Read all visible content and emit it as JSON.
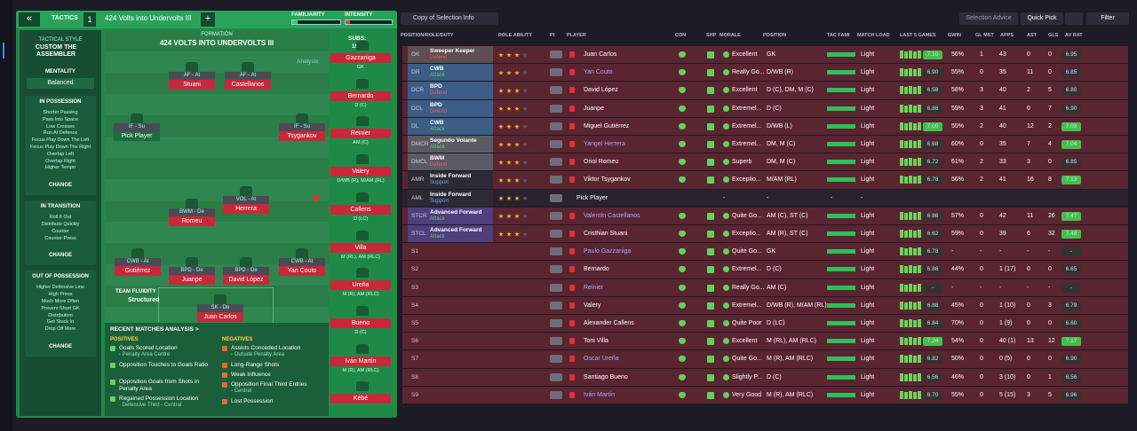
{
  "tactics_panel": {
    "header": {
      "back": "«",
      "label": "TACTICS",
      "slot": "1",
      "tactic_name": "424 Volts into Undervolts III",
      "add": "+",
      "familiarity": "FAMILIARITY",
      "intensity": "INTENSITY"
    },
    "style": {
      "label": "TACTICAL STYLE",
      "name": "CUSTOM THE ASSEMBLER",
      "mentality_label": "MENTALITY",
      "mentality": "Balanced"
    },
    "instruction_groups": [
      {
        "title": "IN POSSESSION",
        "items": [
          "Shorter Passing",
          "Pass Into Space",
          "Low Crosses",
          "Run At Defence",
          "Focus Play Down The Left",
          "Focus Play Down The Right",
          "Overlap Left",
          "Overlap Right",
          "Higher Tempo"
        ],
        "button": "CHANGE"
      },
      {
        "title": "IN TRANSITION",
        "items": [
          "Roll It Out",
          "Distribute Quickly",
          "Counter",
          "Counter-Press"
        ],
        "button": "CHANGE"
      },
      {
        "title": "OUT OF POSSESSION",
        "items": [
          "Higher Defensive Line",
          "High Press",
          "Much More Often",
          "Prevent Short GK",
          "Distribution",
          "Get Stuck In",
          "Drop Off More"
        ],
        "button": "CHANGE"
      }
    ],
    "formation": {
      "label": "FORMATION",
      "name": "424 VOLTS INTO UNDERVOLTS III",
      "analysis": "Analysis",
      "subs_label": "SUBS:",
      "subs_count": "15/15"
    },
    "pitch_players": [
      {
        "role": "AF - At",
        "name": "Stuani"
      },
      {
        "role": "AF - At",
        "name": "Castellanos"
      },
      {
        "role": "IF - Su",
        "name": "Pick Player"
      },
      {
        "role": "IF - Su",
        "name": "Tsygankov"
      },
      {
        "role": "BWM - De",
        "name": "Romeu"
      },
      {
        "role": "VOL - At",
        "name": "Herrera"
      },
      {
        "role": "CWB - At",
        "name": "Gutiérrez"
      },
      {
        "role": "BPD - De",
        "name": "Juanpe"
      },
      {
        "role": "BPD - De",
        "name": "David López"
      },
      {
        "role": "CWB - At",
        "name": "Yan Couto"
      },
      {
        "role": "SK - De",
        "name": "Juan Carlos"
      }
    ],
    "fluidity": {
      "label": "TEAM FLUIDITY",
      "value": "Structured"
    },
    "subs": [
      {
        "name": "Gazzaniga",
        "position": "GK"
      },
      {
        "name": "Bernardo",
        "position": "D (C)"
      },
      {
        "name": "Reinier",
        "position": "AM (C)"
      },
      {
        "name": "Valery",
        "position": "D/WB (R), M/AM (RL)"
      },
      {
        "name": "Callens",
        "position": "D (LC)"
      },
      {
        "name": "Villa",
        "position": "M (RL), AM (RLC)"
      },
      {
        "name": "Ureña",
        "position": "M (R), AM (RLC)"
      },
      {
        "name": "Bueno",
        "position": "D (C)"
      },
      {
        "name": "Iván Martín",
        "position": "M (R), AM (RLC)"
      },
      {
        "name": "Kébé",
        "position": ""
      }
    ],
    "analysis": {
      "title": "RECENT MATCHES ANALYSIS >",
      "positives_label": "POSITIVES",
      "positives": [
        {
          "text": "Goals Scored Location",
          "detail": "- Penalty Area Centre"
        },
        {
          "text": "Opposition Touches to Goals Ratio"
        },
        {
          "text": "Opposition Goals from Shots in Penalty Area"
        },
        {
          "text": "Regained Possession Location",
          "detail": "- Defensive Third - Central"
        }
      ],
      "negatives_label": "NEGATIVES",
      "negatives": [
        {
          "text": "Assists Conceded Location",
          "detail": "- Outside Penalty Area"
        },
        {
          "text": "Long-Range Shots"
        },
        {
          "text": "Weak Influence"
        },
        {
          "text": "Opposition Final Third Entries",
          "detail": "- Central"
        },
        {
          "text": "Lost Possession"
        }
      ]
    }
  },
  "selection_panel": {
    "toolbar": {
      "view": "Copy of Selection Info",
      "advice": "Selection Advice",
      "quick_pick": "Quick Pick",
      "filter": "Filter"
    },
    "columns": {
      "pos": "POSITION/ROLE/DUTY",
      "ability": "ROLE ABILITY",
      "pi": "PI",
      "player": "PLAYER",
      "con": "CON",
      "shp": "SHP",
      "morale": "MORALE",
      "position": "POSITION",
      "tac": "TAC FAMI",
      "load": "MATCH LOAD",
      "last5": "LAST 5 GAMES",
      "gwin": "GWIN",
      "glmst": "GL MST",
      "apps": "APPS",
      "ast": "AST",
      "gls": "GLS",
      "av_rat": "AV RAT"
    },
    "rows": [
      {
        "pos": "GK",
        "role": "Sweeper Keeper",
        "duty": "Defend",
        "duty_color": "#e26464",
        "role_color": "#5e4f52",
        "player": "Juan Carlos",
        "morale": "Excellent",
        "position": "GK",
        "match_load": "Light",
        "last5": "7.10",
        "gwin": "56%",
        "glmst": "1",
        "apps": "43",
        "ast": "0",
        "gls": "0",
        "av_rat": "6.95"
      },
      {
        "pos": "DR",
        "role": "CWB",
        "duty": "Attack",
        "duty_color": "#5ad174",
        "role_color": "#3b5d86",
        "player": "Yan Couto",
        "name_color": "#a7a9ff",
        "morale": "Really Go...",
        "position": "D/WB (R)",
        "match_load": "Light",
        "last5": "6.90",
        "gwin": "55%",
        "glmst": "0",
        "apps": "35",
        "ast": "11",
        "gls": "0",
        "av_rat": "6.85"
      },
      {
        "pos": "DCR",
        "role": "BPD",
        "duty": "Defend",
        "duty_color": "#e26464",
        "role_color": "#3b5d86",
        "player": "David López",
        "morale": "Excellent",
        "position": "D (C), DM, M (C)",
        "match_load": "Light",
        "last5": "6.58",
        "gwin": "58%",
        "glmst": "3",
        "apps": "40",
        "ast": "2",
        "gls": "5",
        "av_rat": "6.80"
      },
      {
        "pos": "DCL",
        "role": "BPD",
        "duty": "Defend",
        "duty_color": "#e26464",
        "role_color": "#3b5d86",
        "player": "Juanpe",
        "morale": "Extremel...",
        "position": "D (C)",
        "match_load": "Light",
        "last5": "6.88",
        "gwin": "59%",
        "glmst": "3",
        "apps": "41",
        "ast": "0",
        "gls": "7",
        "av_rat": "6.90"
      },
      {
        "pos": "DL",
        "role": "CWB",
        "duty": "Attack",
        "duty_color": "#5ad174",
        "role_color": "#3b5d86",
        "player": "Miguel Gutiérrez",
        "morale": "Extremel...",
        "position": "D/WB (L)",
        "match_load": "Light",
        "last5": "7.00",
        "gwin": "55%",
        "glmst": "2",
        "apps": "40",
        "ast": "12",
        "gls": "2",
        "av_rat": "7.03"
      },
      {
        "pos": "DMCR",
        "role": "Segundo Volante",
        "duty": "Attack",
        "duty_color": "#5ad174",
        "role_color": "#5b5a66",
        "player": "Yangel Herrera",
        "name_color": "#a7a9ff",
        "morale": "Extremel...",
        "position": "DM, M (C)",
        "match_load": "Light",
        "last5": "6.68",
        "gwin": "60%",
        "glmst": "0",
        "apps": "35",
        "ast": "7",
        "gls": "4",
        "av_rat": "7.04"
      },
      {
        "pos": "DMCL",
        "role": "BWM",
        "duty": "Defend",
        "duty_color": "#e26464",
        "role_color": "#5b5a66",
        "player": "Oriol Romeu",
        "morale": "Superb",
        "position": "DM, M (C)",
        "match_load": "Light",
        "last5": "6.72",
        "gwin": "61%",
        "glmst": "2",
        "apps": "33",
        "ast": "3",
        "gls": "0",
        "av_rat": "6.85"
      },
      {
        "pos": "AMR",
        "role": "Inside Forward",
        "duty": "Support",
        "duty_color": "#6fa3ff",
        "role_color": "#2b2a36",
        "player": "Viktor Tsygankov",
        "morale": "Exceptio...",
        "position": "M/AM (RL)",
        "match_load": "Light",
        "last5": "6.78",
        "gwin": "56%",
        "glmst": "2",
        "apps": "41",
        "ast": "16",
        "gls": "8",
        "av_rat": "7.13"
      },
      {
        "pos": "AML",
        "role": "Inside Forward",
        "duty": "Support",
        "duty_color": "#6fa3ff",
        "role_color": "#2b2a36",
        "player": "Pick Player",
        "morale": "-",
        "position": "-",
        "tac": "-",
        "match_load": "-"
      },
      {
        "pos": "STCR",
        "role": "Advanced Forward",
        "duty": "Attack",
        "duty_color": "#5ad174",
        "role_color": "#4e3f7e",
        "player": "Valentín Castellanos",
        "name_color": "#a7a9ff",
        "morale": "Quite Go...",
        "position": "AM (C), ST (C)",
        "match_load": "Light",
        "last5": "6.86",
        "gwin": "57%",
        "glmst": "0",
        "apps": "42",
        "ast": "11",
        "gls": "26",
        "av_rat": "7.47"
      },
      {
        "pos": "STCL",
        "role": "Advanced Forward",
        "duty": "Attack",
        "duty_color": "#5ad174",
        "role_color": "#4e3f7e",
        "player": "Cristhian Stuani",
        "morale": "Exceptio...",
        "position": "AM (R), ST (C)",
        "match_load": "Light",
        "last5": "6.62",
        "gwin": "59%",
        "glmst": "0",
        "apps": "39",
        "ast": "6",
        "gls": "32",
        "av_rat": "7.48"
      },
      {
        "pos": "S1",
        "player": "Paulo Gazzaniga",
        "name_color": "#a7a9ff",
        "morale": "Quite Go...",
        "position": "GK",
        "match_load": "Light",
        "last5": "6.78",
        "gwin": "-",
        "glmst": "-",
        "apps": "-",
        "ast": "-",
        "gls": "-",
        "av_rat": "-"
      },
      {
        "pos": "S2",
        "player": "Bernardo",
        "morale": "Extremel...",
        "position": "D (C)",
        "match_load": "Light",
        "last5": "6.86",
        "gwin": "44%",
        "glmst": "0",
        "apps": "1 (17)",
        "ast": "0",
        "gls": "0",
        "av_rat": "6.65"
      },
      {
        "pos": "S3",
        "player": "Reinier",
        "name_color": "#a7a9ff",
        "morale": "Really Go...",
        "position": "AM (C)",
        "match_load": "Light",
        "last5": "-",
        "gwin": "-",
        "glmst": "-",
        "apps": "-",
        "ast": "-",
        "gls": "-",
        "av_rat": "-"
      },
      {
        "pos": "S4",
        "player": "Valery",
        "morale": "Extremel...",
        "position": "D/WB (R), M/AM (RL)",
        "match_load": "Light",
        "last5": "6.88",
        "gwin": "45%",
        "glmst": "0",
        "apps": "1 (10)",
        "ast": "0",
        "gls": "3",
        "av_rat": "6.79"
      },
      {
        "pos": "S5",
        "player": "Alexander Callens",
        "morale": "Quite Poor",
        "position": "D (LC)",
        "match_load": "Light",
        "last5": "6.84",
        "gwin": "70%",
        "glmst": "0",
        "apps": "1 (9)",
        "ast": "0",
        "gls": "0",
        "av_rat": "6.60"
      },
      {
        "pos": "S6",
        "player": "Toni Villa",
        "morale": "Excellent",
        "position": "M (RL), AM (RLC)",
        "match_load": "Light",
        "last5": "7.24",
        "gwin": "54%",
        "glmst": "0",
        "apps": "40 (1)",
        "ast": "13",
        "gls": "12",
        "av_rat": "7.17"
      },
      {
        "pos": "S7",
        "player": "Oscar Ureña",
        "name_color": "#a7a9ff",
        "morale": "Quite Go...",
        "position": "M (R), AM (RLC)",
        "match_load": "Light",
        "last5": "6.82",
        "gwin": "50%",
        "glmst": "0",
        "apps": "0 (5)",
        "ast": "0",
        "gls": "0",
        "av_rat": "6.90"
      },
      {
        "pos": "S8",
        "player": "Santiago Bueno",
        "morale": "Slightly P...",
        "position": "D (C)",
        "match_load": "Light",
        "last5": "6.56",
        "gwin": "46%",
        "glmst": "0",
        "apps": "3 (10)",
        "ast": "0",
        "gls": "1",
        "av_rat": "6.56"
      },
      {
        "pos": "S9",
        "player": "Iván Martín",
        "name_color": "#a7a9ff",
        "morale": "Very Good",
        "position": "M (R), AM (RLC)",
        "match_load": "Light",
        "last5": "6.70",
        "gwin": "55%",
        "glmst": "0",
        "apps": "5 (15)",
        "ast": "3",
        "gls": "5",
        "av_rat": "6.96"
      }
    ]
  }
}
